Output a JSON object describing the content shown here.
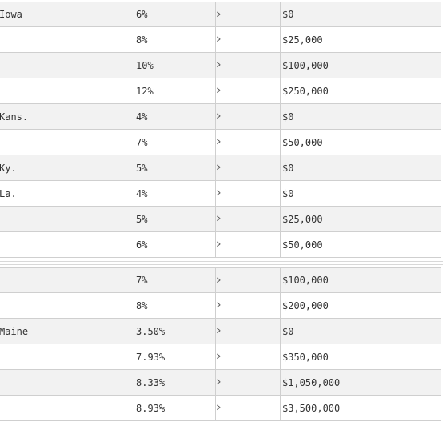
{
  "top_rows": [
    {
      "state": "Iowa",
      "rate": "6%",
      "op": ">",
      "amount": "$0",
      "shade": true
    },
    {
      "state": "",
      "rate": "8%",
      "op": ">",
      "amount": "$25,000",
      "shade": false
    },
    {
      "state": "",
      "rate": "10%",
      "op": ">",
      "amount": "$100,000",
      "shade": true
    },
    {
      "state": "",
      "rate": "12%",
      "op": ">",
      "amount": "$250,000",
      "shade": false
    },
    {
      "state": "Kans.",
      "rate": "4%",
      "op": ">",
      "amount": "$0",
      "shade": true
    },
    {
      "state": "",
      "rate": "7%",
      "op": ">",
      "amount": "$50,000",
      "shade": false
    },
    {
      "state": "Ky.",
      "rate": "5%",
      "op": ">",
      "amount": "$0",
      "shade": true
    },
    {
      "state": "La.",
      "rate": "4%",
      "op": ">",
      "amount": "$0",
      "shade": false
    },
    {
      "state": "",
      "rate": "5%",
      "op": ">",
      "amount": "$25,000",
      "shade": true
    },
    {
      "state": "",
      "rate": "6%",
      "op": ">",
      "amount": "$50,000",
      "shade": false
    }
  ],
  "bottom_rows": [
    {
      "state": "",
      "rate": "7%",
      "op": ">",
      "amount": "$100,000",
      "shade": true
    },
    {
      "state": "",
      "rate": "8%",
      "op": ">",
      "amount": "$200,000",
      "shade": false
    },
    {
      "state": "Maine",
      "rate": "3.50%",
      "op": ">",
      "amount": "$0",
      "shade": true
    },
    {
      "state": "",
      "rate": "7.93%",
      "op": ">",
      "amount": "$350,000",
      "shade": false
    },
    {
      "state": "",
      "rate": "8.33%",
      "op": ">",
      "amount": "$1,050,000",
      "shade": true
    },
    {
      "state": "",
      "rate": "8.93%",
      "op": ">",
      "amount": "$3,500,000",
      "shade": false
    }
  ]
}
